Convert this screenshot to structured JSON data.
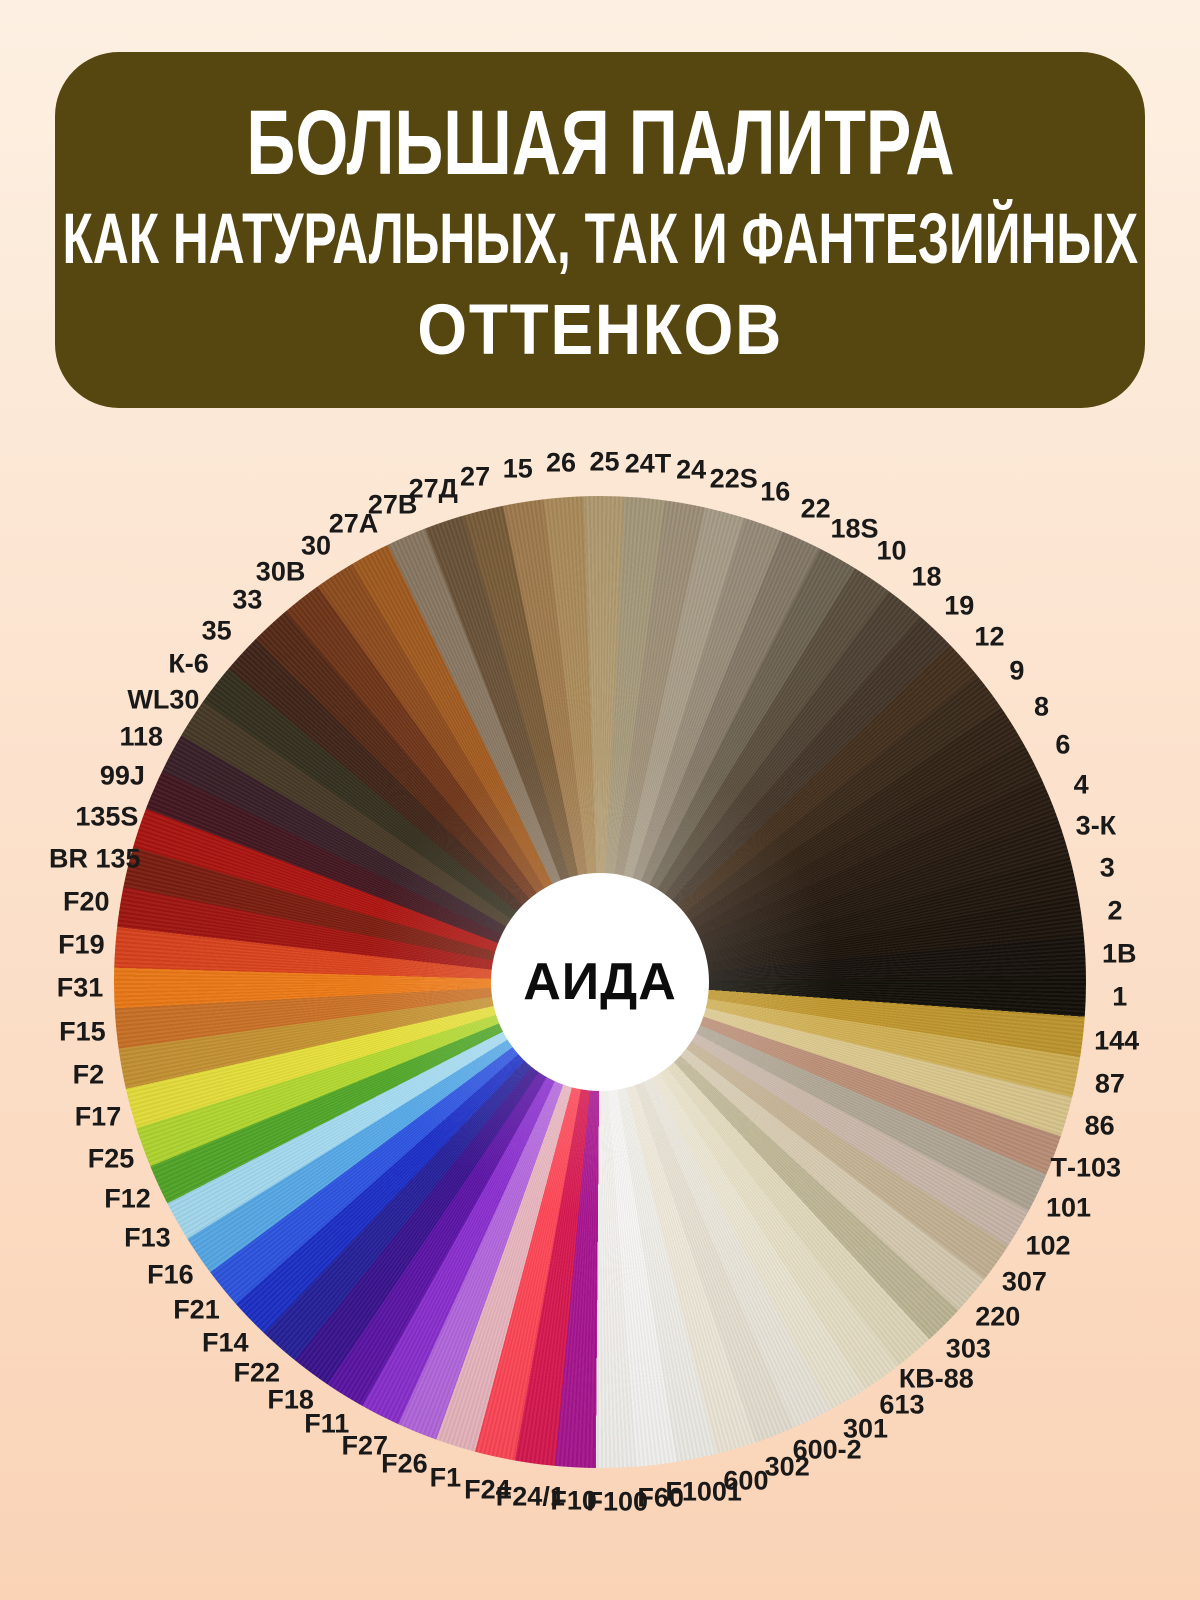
{
  "header": {
    "line1": "БОЛЬШАЯ ПАЛИТРА",
    "line2": "КАК НАТУРАЛЬНЫХ, ТАК И ФАНТЕЗИЙНЫХ",
    "line3": "ОТТЕНКОВ",
    "bg": "#55470f",
    "text_color": "#ffffff"
  },
  "background": {
    "top": "#fdf0e2",
    "bottom": "#fad3b6"
  },
  "wheel": {
    "center_label": "АИДА",
    "center_bg": "#ffffff",
    "label_color": "#191919",
    "start_center_deg": -18.7,
    "label_radius": 520,
    "segments": [
      {
        "code": "27Д",
        "color": "#6b5339"
      },
      {
        "code": "27",
        "color": "#7b5e3a"
      },
      {
        "code": "15",
        "color": "#a27c4e"
      },
      {
        "code": "26",
        "color": "#ad8d5c"
      },
      {
        "code": "25",
        "color": "#b39d72"
      },
      {
        "code": "24Т",
        "color": "#a89b7c"
      },
      {
        "code": "24",
        "color": "#a09179"
      },
      {
        "code": "22S",
        "color": "#aa9f8a"
      },
      {
        "code": "16",
        "color": "#9a8e7b"
      },
      {
        "code": "22",
        "color": "#867a69"
      },
      {
        "code": "18S",
        "color": "#6e6453"
      },
      {
        "code": "10",
        "color": "#5c503f"
      },
      {
        "code": "18",
        "color": "#4e4234"
      },
      {
        "code": "19",
        "color": "#443629"
      },
      {
        "code": "12",
        "color": "#45301d"
      },
      {
        "code": "9",
        "color": "#3a2a1b"
      },
      {
        "code": "8",
        "color": "#332316"
      },
      {
        "code": "6",
        "color": "#2d1f13"
      },
      {
        "code": "4",
        "color": "#281b11"
      },
      {
        "code": "3-К",
        "color": "#241910"
      },
      {
        "code": "3",
        "color": "#20160d"
      },
      {
        "code": "2",
        "color": "#1c140b"
      },
      {
        "code": "1В",
        "color": "#17110c"
      },
      {
        "code": "1",
        "color": "#121008"
      },
      {
        "code": "144",
        "color": "#c1982e"
      },
      {
        "code": "87",
        "color": "#d2b155"
      },
      {
        "code": "86",
        "color": "#ddc98e"
      },
      {
        "code": "Т-103",
        "color": "#bd9078"
      },
      {
        "code": "101",
        "color": "#b2a897"
      },
      {
        "code": "102",
        "color": "#cbb9ab"
      },
      {
        "code": "307",
        "color": "#c6b495"
      },
      {
        "code": "220",
        "color": "#d8ccb2"
      },
      {
        "code": "303",
        "color": "#c0b897"
      },
      {
        "code": "КВ-88",
        "color": "#e3dabd"
      },
      {
        "code": "613",
        "color": "#e9e1c8"
      },
      {
        "code": "301",
        "color": "#ece6d3"
      },
      {
        "code": "600-2",
        "color": "#ebe7dc"
      },
      {
        "code": "302",
        "color": "#e7e1d3"
      },
      {
        "code": "600",
        "color": "#efe9da"
      },
      {
        "code": "F1001",
        "color": "#f0eee8"
      },
      {
        "code": "F60",
        "color": "#f7f6f4"
      },
      {
        "code": "F100",
        "color": "#f2f1ed"
      },
      {
        "code": "F10",
        "color": "#a81590"
      },
      {
        "code": "F24/1",
        "color": "#d81850"
      },
      {
        "code": "F24",
        "color": "#ff4757"
      },
      {
        "code": "F1",
        "color": "#e9b6bf"
      },
      {
        "code": "F26",
        "color": "#b467de"
      },
      {
        "code": "F27",
        "color": "#8b2fd0"
      },
      {
        "code": "F11",
        "color": "#5c14a6"
      },
      {
        "code": "F18",
        "color": "#3a1390"
      },
      {
        "code": "F22",
        "color": "#26219b"
      },
      {
        "code": "F14",
        "color": "#1c2fc8"
      },
      {
        "code": "F21",
        "color": "#2e55e3"
      },
      {
        "code": "F16",
        "color": "#57aae9"
      },
      {
        "code": "F13",
        "color": "#a6dcf2"
      },
      {
        "code": "F12",
        "color": "#51a829"
      },
      {
        "code": "F25",
        "color": "#b3d930"
      },
      {
        "code": "F17",
        "color": "#e8e13b"
      },
      {
        "code": "F2",
        "color": "#c79333"
      },
      {
        "code": "F15",
        "color": "#cc7227"
      },
      {
        "code": "F31",
        "color": "#ee7a16"
      },
      {
        "code": "F19",
        "color": "#dc431d"
      },
      {
        "code": "F20",
        "color": "#a31511"
      },
      {
        "code": "BR 135",
        "color": "#7c1d10"
      },
      {
        "code": "135S",
        "color": "#ad1410"
      },
      {
        "code": "99J",
        "color": "#441720"
      },
      {
        "code": "118",
        "color": "#392028"
      },
      {
        "code": "WL30",
        "color": "#473926"
      },
      {
        "code": "К-6",
        "color": "#35301f"
      },
      {
        "code": "35",
        "color": "#402519"
      },
      {
        "code": "33",
        "color": "#562a17"
      },
      {
        "code": "30В",
        "color": "#713619"
      },
      {
        "code": "30",
        "color": "#8f4d1e"
      },
      {
        "code": "27А",
        "color": "#a35c20"
      },
      {
        "code": "27В",
        "color": "#8b7963"
      }
    ]
  }
}
